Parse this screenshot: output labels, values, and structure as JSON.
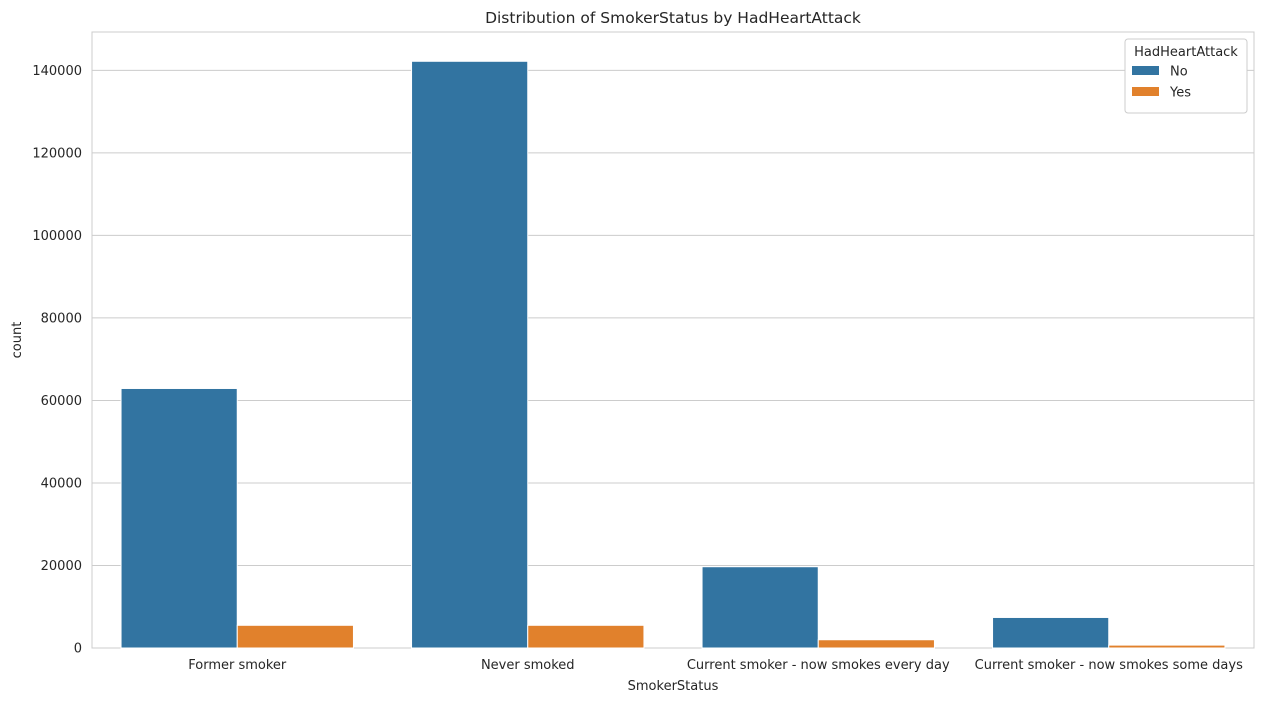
{
  "chart_data": {
    "type": "bar",
    "title": "Distribution of SmokerStatus by HadHeartAttack",
    "xlabel": "SmokerStatus",
    "ylabel": "count",
    "categories": [
      "Former smoker",
      "Never smoked",
      "Current smoker - now smokes every day",
      "Current smoker - now smokes some days"
    ],
    "series": [
      {
        "name": "No",
        "values": [
          62900,
          142200,
          19700,
          7400
        ],
        "color": "#3274a1"
      },
      {
        "name": "Yes",
        "values": [
          5500,
          5500,
          2000,
          700
        ],
        "color": "#e1812c"
      }
    ],
    "ylim": [
      0,
      149300
    ],
    "yticks": [
      0,
      20000,
      40000,
      60000,
      80000,
      100000,
      120000,
      140000
    ],
    "grid": true,
    "legend": {
      "title": "HadHeartAttack",
      "placement": "top-right"
    }
  }
}
